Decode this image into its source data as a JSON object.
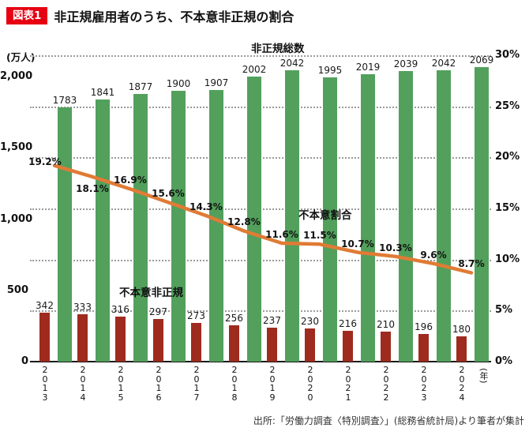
{
  "header": {
    "badge": "図表1",
    "title": "非正規雇用者のうち、不本意非正規の割合"
  },
  "chart_data": {
    "type": "bar",
    "subtype": "grouped-bars-with-ratio-line",
    "unit_label": "(万人)",
    "year_suffix": "(年)",
    "categories": [
      "2013",
      "2014",
      "2015",
      "2016",
      "2017",
      "2018",
      "2019",
      "2020",
      "2021",
      "2022",
      "2023",
      "2024"
    ],
    "series": [
      {
        "name": "非正規総数",
        "type": "bar",
        "color": "#52a05c",
        "values": [
          1783,
          1841,
          1877,
          1900,
          1907,
          2002,
          2042,
          1995,
          2019,
          2039,
          2042,
          2069
        ]
      },
      {
        "name": "不本意非正規",
        "type": "bar",
        "color": "#9e2b1e",
        "values": [
          342,
          333,
          316,
          297,
          273,
          256,
          237,
          230,
          216,
          210,
          196,
          180
        ]
      },
      {
        "name": "不本意割合",
        "type": "line",
        "color": "#e07b35",
        "unit": "%",
        "values": [
          19.2,
          18.1,
          16.9,
          15.6,
          14.3,
          12.8,
          11.6,
          11.5,
          10.7,
          10.3,
          9.6,
          8.7
        ],
        "labels": [
          "19.2%",
          "18.1%",
          "16.9%",
          "15.6%",
          "14.3%",
          "12.8%",
          "11.6%",
          "11.5%",
          "10.7%",
          "10.3%",
          "9.6%",
          "8.7%"
        ]
      }
    ],
    "left_axis": {
      "ticks": [
        "2,000",
        "1,500",
        "1,000",
        "500",
        "0"
      ],
      "values": [
        2000,
        1500,
        1000,
        500,
        0
      ]
    },
    "right_axis": {
      "ticks": [
        "30%",
        "25%",
        "20%",
        "15%",
        "10%",
        "5%",
        "0%"
      ],
      "values": [
        30,
        25,
        20,
        15,
        10,
        5,
        0
      ]
    },
    "annotations": [
      {
        "text": "非正規総数"
      },
      {
        "text": "不本意割合"
      },
      {
        "text": "不本意非正規"
      }
    ]
  },
  "footer": {
    "source": "出所:「労働力調査〈特別調査〉」(総務省統計局)より筆者が集計"
  }
}
